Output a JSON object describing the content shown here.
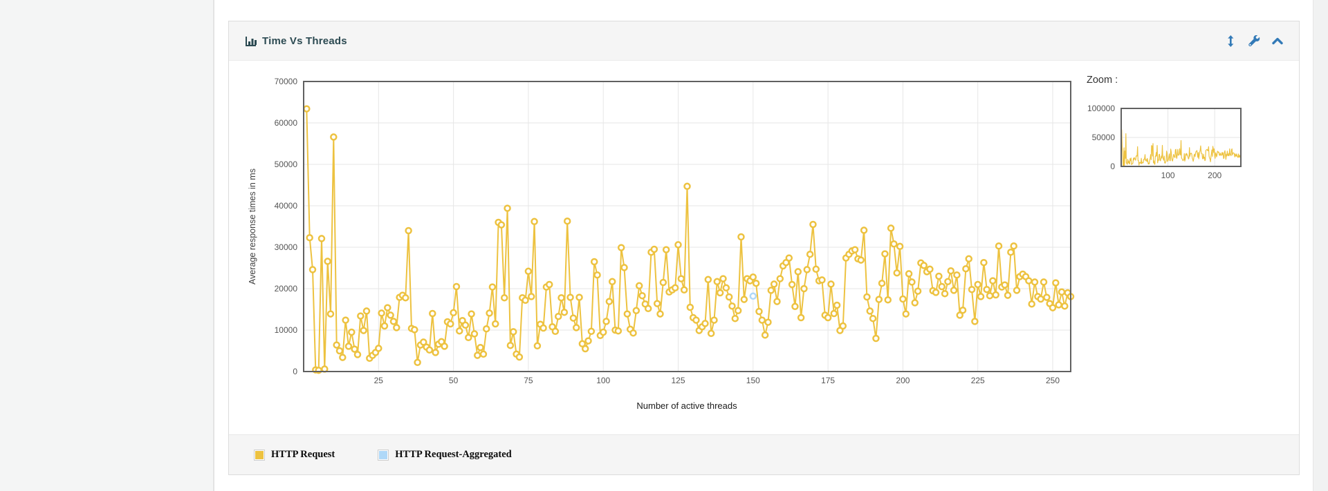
{
  "page": {
    "background": "#ffffff",
    "left_rail_color": "#f4f5f5",
    "right_rail_color": "#f1f2f2"
  },
  "panel": {
    "title": "Time Vs Threads",
    "title_color": "#2c4a52",
    "header_background": "#f5f5f5",
    "action_icon_color": "#337ab7",
    "actions": [
      {
        "name": "resize-vertical",
        "icon": "resize-vertical-icon"
      },
      {
        "name": "customize-graph",
        "icon": "wrench-icon"
      },
      {
        "name": "collapse-panel",
        "icon": "chevron-up-icon"
      }
    ]
  },
  "zoom_panel": {
    "label": "Zoom :"
  },
  "legend": {
    "items": [
      {
        "label": "HTTP Request",
        "color": "#edc240"
      },
      {
        "label": "HTTP Request-Aggregated",
        "color": "#afd8f8"
      }
    ]
  },
  "chart_data": {
    "type": "line",
    "title": "Time Vs Threads",
    "xlabel": "Number of active threads",
    "ylabel": "Average response times in ms",
    "xlim": [
      0,
      256
    ],
    "ylim": [
      0,
      70000
    ],
    "xticks": [
      25,
      50,
      75,
      100,
      125,
      150,
      175,
      200,
      225,
      250
    ],
    "yticks": [
      0,
      10000,
      20000,
      30000,
      40000,
      50000,
      60000,
      70000
    ],
    "grid": true,
    "tick_color": "#545454",
    "grid_color": "#e6e6e6",
    "border_color": "#606060",
    "x_start": 1,
    "series": [
      {
        "name": "HTTP Request",
        "color": "#edc240",
        "marker": "circle",
        "values": [
          63400,
          32300,
          24600,
          400,
          300,
          32100,
          600,
          26600,
          13900,
          56600,
          6400,
          5000,
          3400,
          12400,
          6100,
          9500,
          5400,
          4100,
          13400,
          9900,
          14600,
          3200,
          3900,
          4600,
          5600,
          14100,
          11000,
          15400,
          13600,
          12100,
          10600,
          17900,
          18400,
          17800,
          34000,
          10400,
          10100,
          2200,
          6400,
          7100,
          5900,
          5200,
          14000,
          4600,
          6600,
          7200,
          6100,
          12000,
          11500,
          14200,
          20500,
          9800,
          12300,
          11200,
          8200,
          13900,
          9100,
          3900,
          5800,
          4200,
          10300,
          14100,
          20400,
          11500,
          36000,
          35400,
          17800,
          39400,
          6300,
          9600,
          4200,
          3500,
          17800,
          17200,
          24200,
          18100,
          36200,
          6200,
          11400,
          10500,
          20400,
          21000,
          10800,
          9700,
          13300,
          17800,
          14300,
          36300,
          17900,
          12900,
          10600,
          17900,
          6700,
          5500,
          7400,
          9700,
          26500,
          23300,
          8700,
          9500,
          12100,
          16900,
          21700,
          10000,
          9800,
          29900,
          25100,
          13900,
          10200,
          9300,
          14700,
          20700,
          18300,
          16300,
          15200,
          28800,
          29500,
          16400,
          13900,
          21500,
          29400,
          19200,
          19700,
          20200,
          30600,
          22400,
          19700,
          44700,
          15500,
          13000,
          12400,
          9900,
          10800,
          11600,
          22200,
          9200,
          12400,
          21700,
          19000,
          22400,
          20200,
          18000,
          15800,
          12800,
          14700,
          32500,
          17400,
          22400,
          21900,
          22800,
          21300,
          14500,
          12400,
          8800,
          11900,
          19600,
          21100,
          16900,
          22400,
          25500,
          26300,
          27400,
          21000,
          15700,
          24100,
          13000,
          20000,
          24600,
          28300,
          35500,
          24700,
          21900,
          22100,
          13600,
          13000,
          21100,
          14000,
          16000,
          9900,
          11000,
          27400,
          28300,
          29100,
          29400,
          27200,
          26900,
          34100,
          18000,
          14600,
          12800,
          8000,
          17400,
          21300,
          28400,
          17300,
          34600,
          30800,
          23800,
          30200,
          17500,
          13900,
          23600,
          21600,
          16600,
          19400,
          26200,
          25600,
          24100,
          24700,
          19500,
          19100,
          23000,
          20500,
          18800,
          21700,
          24300,
          19600,
          23300,
          13600,
          14800,
          24800,
          27200,
          19800,
          12100,
          21000,
          18100,
          26300,
          19800,
          18300,
          21900,
          18500,
          30300,
          20400,
          20900,
          18400,
          28800,
          30300,
          19600,
          22900,
          23500,
          22900,
          21900,
          16300,
          21600,
          18100,
          17500,
          21600,
          17900,
          16400,
          15400,
          21400,
          16100,
          19200,
          15800,
          19000,
          18100
        ]
      },
      {
        "name": "HTTP Request-Aggregated",
        "color": "#afd8f8",
        "marker": "circle",
        "points": [
          [
            150,
            18200
          ]
        ]
      }
    ],
    "overview": {
      "label": "Zoom :",
      "xticks": [
        100,
        200
      ],
      "yticks": [
        0,
        50000,
        100000
      ],
      "xlim": [
        0,
        256
      ],
      "ylim": [
        0,
        100000
      ]
    }
  }
}
